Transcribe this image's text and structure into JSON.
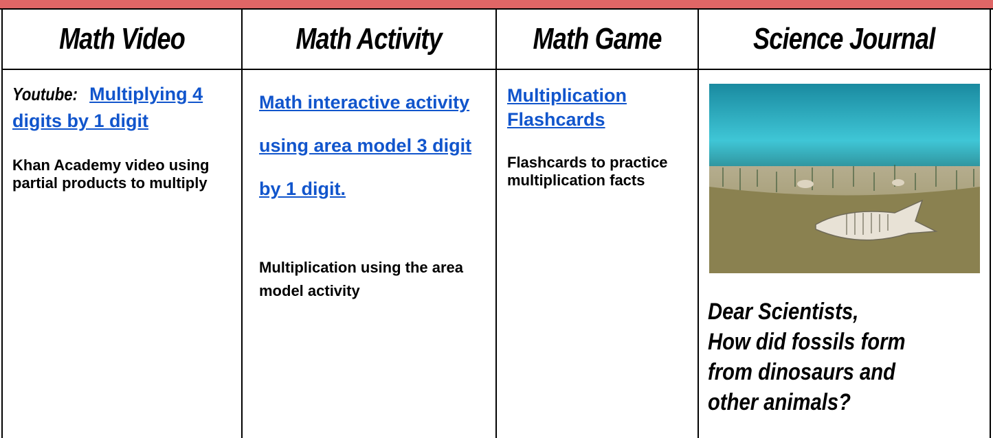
{
  "header": {
    "columns": [
      "Math Video",
      "Math Activity",
      "Math Game",
      "Science Journal"
    ]
  },
  "cells": [
    {
      "label": "Youtube:",
      "link": "Multiplying 4 digits by 1 digit",
      "description": "Khan Academy video using partial products to multiply"
    },
    {
      "link": "Math interactive activity using area model 3 digit by 1 digit.",
      "description": "Multiplication using the area model activity"
    },
    {
      "link": "Multiplication Flashcards",
      "description": "Flashcards to practice multiplication facts"
    },
    {
      "greeting": "Dear Scientists,",
      "question": "How did fossils form from dinosaurs and other animals?"
    }
  ]
}
